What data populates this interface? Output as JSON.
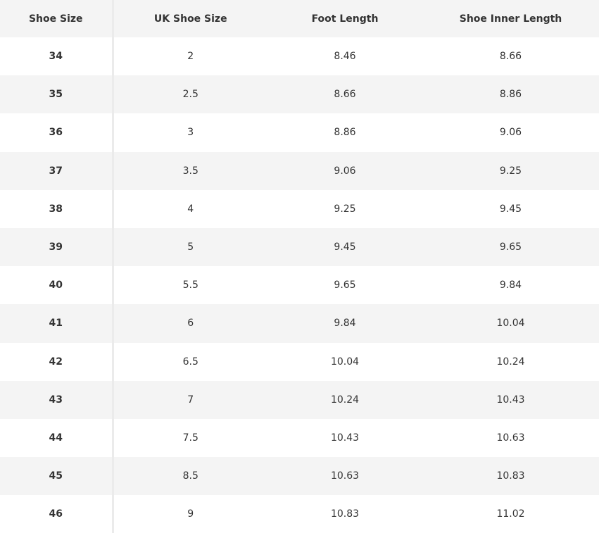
{
  "table": {
    "headers": [
      "Shoe Size",
      "UK Shoe Size",
      "Foot Length",
      "Shoe Inner Length"
    ],
    "rows": [
      [
        "34",
        "2",
        "8.46",
        "8.66"
      ],
      [
        "35",
        "2.5",
        "8.66",
        "8.86"
      ],
      [
        "36",
        "3",
        "8.86",
        "9.06"
      ],
      [
        "37",
        "3.5",
        "9.06",
        "9.25"
      ],
      [
        "38",
        "4",
        "9.25",
        "9.45"
      ],
      [
        "39",
        "5",
        "9.45",
        "9.65"
      ],
      [
        "40",
        "5.5",
        "9.65",
        "9.84"
      ],
      [
        "41",
        "6",
        "9.84",
        "10.04"
      ],
      [
        "42",
        "6.5",
        "10.04",
        "10.24"
      ],
      [
        "43",
        "7",
        "10.24",
        "10.43"
      ],
      [
        "44",
        "7.5",
        "10.43",
        "10.63"
      ],
      [
        "45",
        "8.5",
        "10.63",
        "10.83"
      ],
      [
        "46",
        "9",
        "10.83",
        "11.02"
      ]
    ]
  }
}
